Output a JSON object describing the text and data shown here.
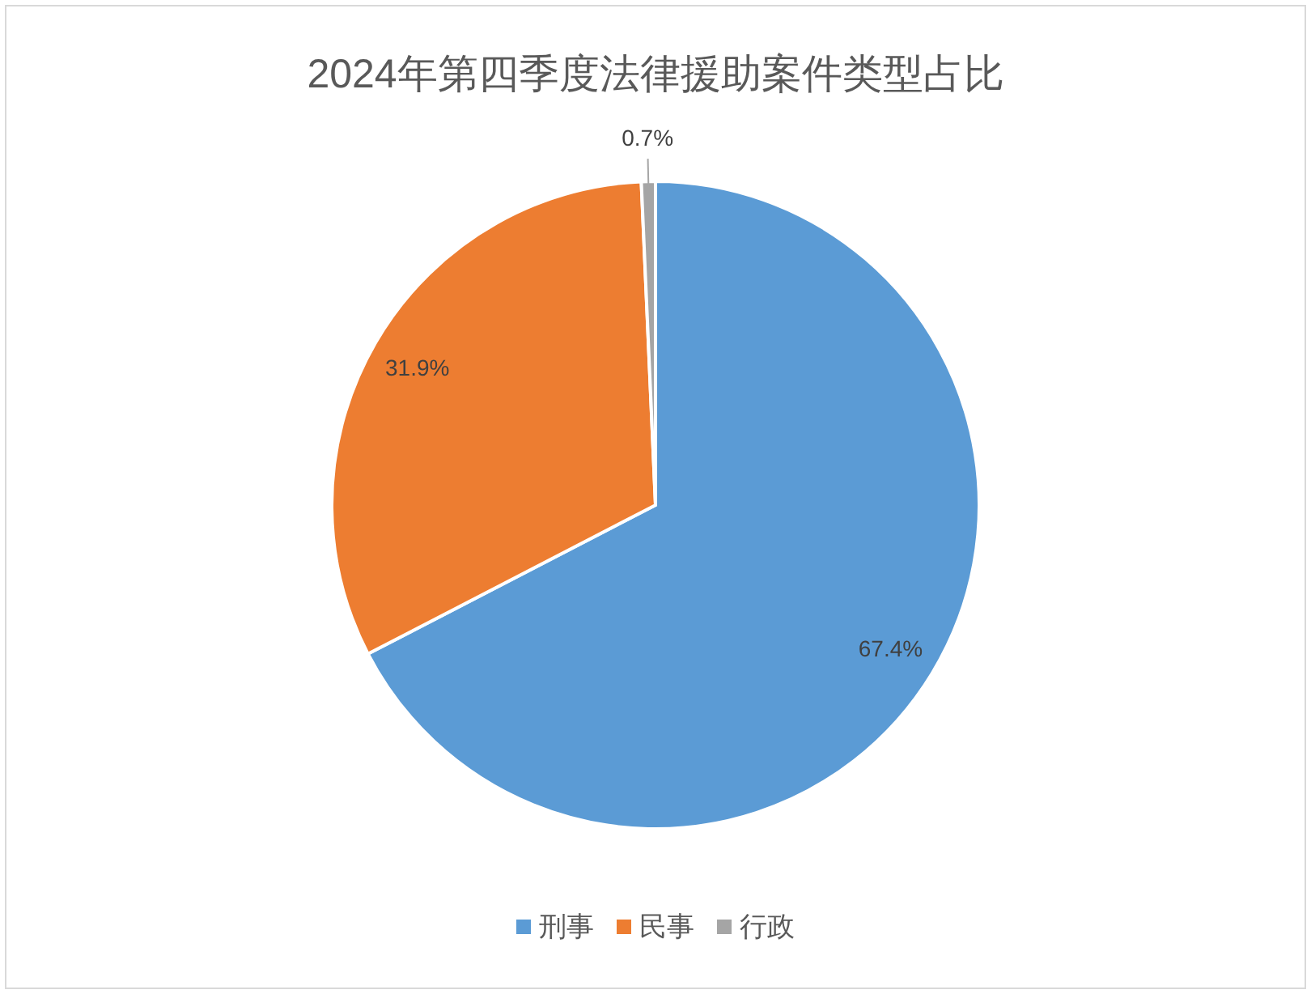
{
  "chart_data": {
    "type": "pie",
    "title": "2024年第四季度法律援助案件类型占比",
    "categories": [
      "刑事",
      "民事",
      "行政"
    ],
    "values": [
      67.4,
      31.9,
      0.7
    ],
    "colors": [
      "#5b9bd5",
      "#ed7d31",
      "#a5a5a5"
    ],
    "value_labels": [
      "67.4%",
      "31.9%",
      "0.7%"
    ],
    "legend": "bottom"
  }
}
